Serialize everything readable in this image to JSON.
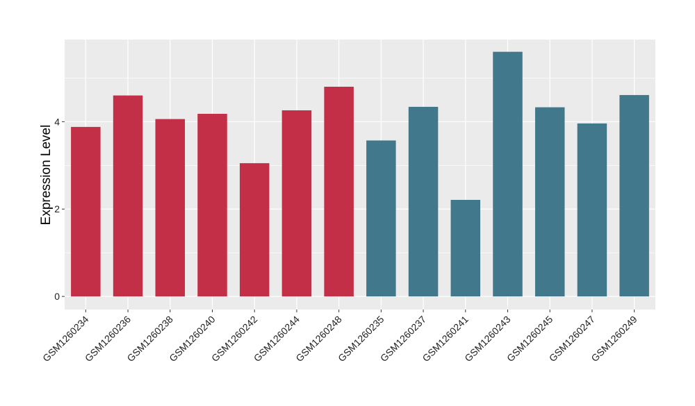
{
  "chart_data": {
    "type": "bar",
    "title": "",
    "xlabel": "",
    "ylabel": "Expression Level",
    "ylim": [
      -0.3,
      5.88
    ],
    "yticks": [
      0,
      2,
      4
    ],
    "grid": true,
    "legend": "none",
    "categories": [
      "GSM1260234",
      "GSM1260236",
      "GSM1260238",
      "GSM1260240",
      "GSM1260242",
      "GSM1260244",
      "GSM1260248",
      "GSM1260235",
      "GSM1260237",
      "GSM1260241",
      "GSM1260243",
      "GSM1260245",
      "GSM1260247",
      "GSM1260249"
    ],
    "values": [
      3.88,
      4.6,
      4.06,
      4.18,
      3.05,
      4.26,
      4.8,
      3.57,
      4.34,
      2.21,
      5.6,
      4.33,
      3.96,
      4.61
    ],
    "group_of_bar": [
      0,
      0,
      0,
      0,
      0,
      0,
      0,
      1,
      1,
      1,
      1,
      1,
      1,
      1
    ],
    "group_colors": [
      "#C32F47",
      "#42788B"
    ],
    "panel_color": "#EBEBEB",
    "grid_color": "#FFFFFF"
  }
}
